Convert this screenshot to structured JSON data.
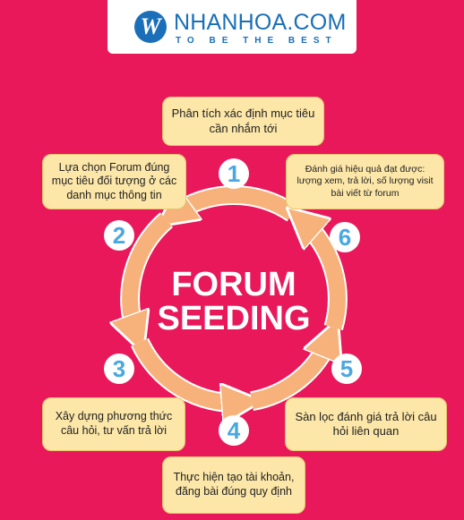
{
  "header": {
    "logo_letter": "W",
    "brand_name": "NHANHOA.COM",
    "tagline": "TO BE THE BEST"
  },
  "center": {
    "line1": "FORUM",
    "line2": "SEEDING"
  },
  "steps": [
    {
      "number": "1",
      "text": "Phân tích xác định mục tiêu cần nhắm tới"
    },
    {
      "number": "2",
      "text": "Lựa chọn Forum đúng mục tiêu đối tượng ở các danh mục thông tin"
    },
    {
      "number": "3",
      "text": "Xây dựng phương thức câu hỏi, tư vấn trả lời"
    },
    {
      "number": "4",
      "text": "Thực hiện tạo tài khoản, đăng bài đúng quy định"
    },
    {
      "number": "5",
      "text": "Sàn lọc đánh giá trả lời câu hỏi liên quan"
    },
    {
      "number": "6",
      "text": "Đánh giá hiệu quả đạt được: lượng xem, trả lời, số lượng visit bài viết từ forum"
    }
  ],
  "colors": {
    "background": "#e8185a",
    "brand": "#1a6fb8",
    "box_fill": "#fce6a8",
    "arrow": "#f6b27a",
    "number_circle": "#ffffff",
    "number_text": "#4aa8e0"
  }
}
